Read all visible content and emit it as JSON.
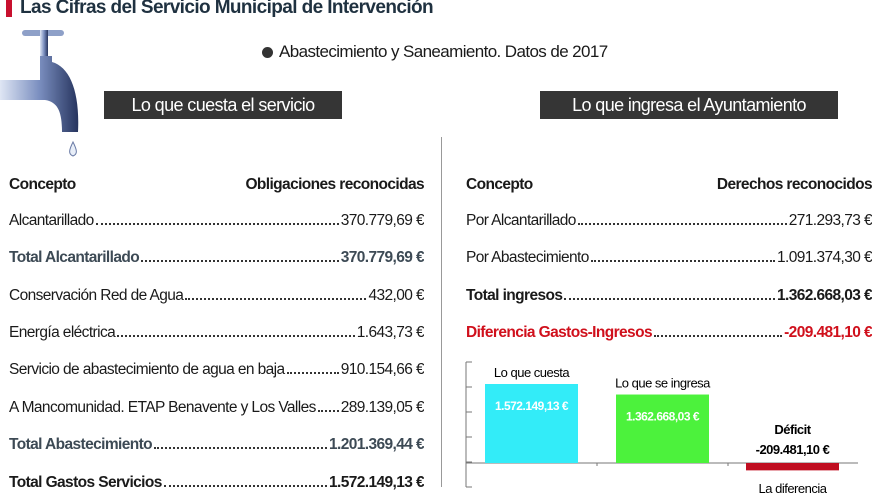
{
  "title": "Las Cifras del Servicio Municipal de Intervención",
  "subtitle": "Abastecimiento y Saneamiento. Datos de 2017",
  "left_section": {
    "header": "Lo que cuesta el servicio",
    "col_concept": "Concepto",
    "col_value": "Obligaciones reconocidas",
    "rows": [
      {
        "label": "Alcantarillado",
        "value": "370.779,69 €",
        "style": "normal"
      },
      {
        "label": "Total Alcantarillado",
        "value": "370.779,69 €",
        "style": "total"
      },
      {
        "label": "Conservación Red de Agua",
        "value": "432,00 €",
        "style": "normal"
      },
      {
        "label": "Energía eléctrica",
        "value": "1.643,73 €",
        "style": "normal"
      },
      {
        "label": "Servicio de abastecimiento de agua en baja",
        "value": "910.154,66 €",
        "style": "normal"
      },
      {
        "label": "A Mancomunidad. ETAP Benavente y Los Valles",
        "value": "289.139,05 €",
        "style": "normal"
      },
      {
        "label": "Total Abastecimiento",
        "value": "1.201.369,44 €",
        "style": "total"
      },
      {
        "label": "Total Gastos Servicios",
        "value": "1.572.149,13 €",
        "style": "grand"
      }
    ]
  },
  "right_section": {
    "header": "Lo que ingresa el Ayuntamiento",
    "col_concept": "Concepto",
    "col_value": "Derechos reconocidos",
    "rows": [
      {
        "label": "Por Alcantarillado",
        "value": "271.293,73 €",
        "style": "normal"
      },
      {
        "label": "Por Abastecimiento",
        "value": "1.091.374,30 €",
        "style": "normal"
      },
      {
        "label": "Total ingresos",
        "value": "1.362.668,03 €",
        "style": "grand"
      },
      {
        "label": "Diferencia Gastos-Ingresos",
        "value": "-209.481,10 €",
        "style": "red"
      }
    ]
  },
  "chart_data": {
    "type": "bar",
    "categories": [
      "Lo que cuesta",
      "Lo que se ingresa",
      "La diferencia"
    ],
    "values": [
      1572149.13,
      1362668.03,
      -209481.1
    ],
    "data_labels": [
      "1.572.149,13 €",
      "1.362.668,03 €",
      "-209.481,10 €"
    ],
    "extra_label": "Déficit",
    "colors": [
      "#33ecf8",
      "#4cf23c",
      "#c00d20"
    ]
  }
}
